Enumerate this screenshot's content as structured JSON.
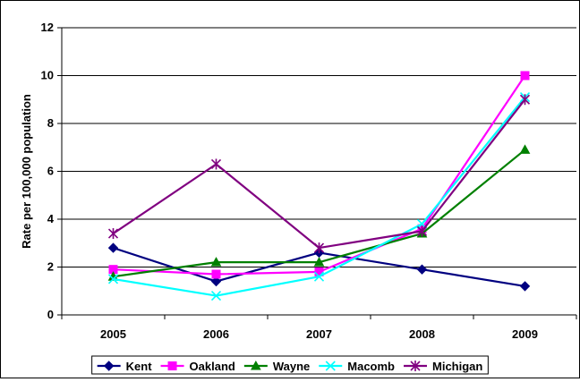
{
  "chart_data": {
    "type": "line",
    "title": "",
    "xlabel": "",
    "ylabel": "Rate per 100,000 population",
    "x": [
      "2005",
      "2006",
      "2007",
      "2008",
      "2009"
    ],
    "ylim": [
      0,
      12
    ],
    "yticks": [
      0,
      2,
      4,
      6,
      8,
      10,
      12
    ],
    "grid": "horizontal",
    "legend_position": "bottom",
    "series": [
      {
        "name": "Kent",
        "values": [
          2.8,
          1.4,
          2.6,
          1.9,
          1.2
        ],
        "color": "#000080",
        "marker": "diamond"
      },
      {
        "name": "Oakland",
        "values": [
          1.9,
          1.7,
          1.8,
          3.6,
          10.0
        ],
        "color": "#FF00FF",
        "marker": "square"
      },
      {
        "name": "Wayne",
        "values": [
          1.6,
          2.2,
          2.2,
          3.4,
          6.9
        ],
        "color": "#008000",
        "marker": "triangle"
      },
      {
        "name": "Macomb",
        "values": [
          1.5,
          0.8,
          1.6,
          3.8,
          9.1
        ],
        "color": "#00FFFF",
        "marker": "x"
      },
      {
        "name": "Michigan",
        "values": [
          3.4,
          6.3,
          2.8,
          3.5,
          9.0
        ],
        "color": "#800080",
        "marker": "asterisk"
      }
    ]
  }
}
